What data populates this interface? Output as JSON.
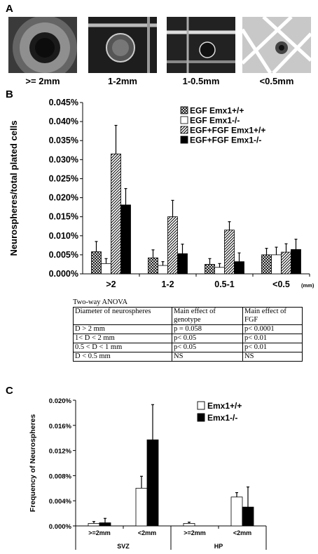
{
  "panels": {
    "A": {
      "letter": "A",
      "photos": [
        {
          "caption": ">= 2mm"
        },
        {
          "caption": "1-2mm"
        },
        {
          "caption": "1-0.5mm"
        },
        {
          "caption": "<0.5mm"
        }
      ]
    },
    "B": {
      "letter": "B"
    },
    "C": {
      "letter": "C"
    }
  },
  "chart_data": [
    {
      "type": "bar",
      "ylabel": "Neurospheres/total plated cells",
      "ylim": [
        0,
        0.045
      ],
      "yticks": [
        "0.000%",
        "0.005%",
        "0.010%",
        "0.015%",
        "0.020%",
        "0.025%",
        "0.030%",
        "0.035%",
        "0.040%",
        "0.045%"
      ],
      "categories": [
        ">2",
        "1-2",
        "0.5-1",
        "<0.5"
      ],
      "unit_label": "(mm)",
      "legend_position": "top-right",
      "series": [
        {
          "name": "EGF Emx1+/+",
          "fill": "crosshatch",
          "values": [
            0.0058,
            0.0042,
            0.0025,
            0.005
          ],
          "errors": [
            0.0027,
            0.0021,
            0.0015,
            0.0017
          ]
        },
        {
          "name": "EGF Emx1-/-",
          "fill": "white",
          "values": [
            0.0027,
            0.0022,
            0.0017,
            0.005
          ],
          "errors": [
            0.0013,
            0.001,
            0.001,
            0.002
          ]
        },
        {
          "name": "EGF+FGF Emx1+/+",
          "fill": "diagonal",
          "values": [
            0.0315,
            0.015,
            0.0115,
            0.0057
          ],
          "errors": [
            0.0075,
            0.0043,
            0.0022,
            0.0022
          ]
        },
        {
          "name": "EGF+FGF Emx1-/-",
          "fill": "black",
          "values": [
            0.0181,
            0.0053,
            0.0032,
            0.0064
          ],
          "errors": [
            0.0043,
            0.0025,
            0.0023,
            0.0027
          ]
        }
      ]
    },
    {
      "type": "bar",
      "ylabel": "Frequency of Neurospheres",
      "ylim": [
        0,
        0.02
      ],
      "yticks": [
        "0.000%",
        "0.004%",
        "0.008%",
        "0.012%",
        "0.016%",
        "0.020%"
      ],
      "categories": [
        ">=2mm",
        "<2mm",
        ">=2mm",
        "<2mm"
      ],
      "groups": [
        {
          "label": "SVZ",
          "categories": [
            0,
            1
          ]
        },
        {
          "label": "HP",
          "categories": [
            2,
            3
          ]
        }
      ],
      "legend_position": "top-right",
      "series": [
        {
          "name": "Emx1+/+",
          "fill": "white",
          "values": [
            0.0004,
            0.006,
            0.0004,
            0.0046
          ],
          "errors": [
            0.0003,
            0.0019,
            0.0002,
            0.0007
          ]
        },
        {
          "name": "Emx1-/-",
          "fill": "black",
          "values": [
            0.0005,
            0.0137,
            0.0,
            0.003
          ],
          "errors": [
            0.0007,
            0.0056,
            0.0,
            0.0032
          ]
        }
      ]
    }
  ],
  "anova": {
    "title": "Two-way ANOVA",
    "header": [
      "Diameter of neurospheres",
      "Main effect of genotype",
      "Main effect of FGF"
    ],
    "rows": [
      [
        "D > 2 mm",
        "p = 0.058",
        "p< 0.0001"
      ],
      [
        "1< D < 2 mm",
        "p< 0.05",
        "p< 0.01"
      ],
      [
        "0.5 < D < 1 mm",
        "p< 0.05",
        "p< 0.01"
      ],
      [
        "D < 0.5 mm",
        "NS",
        "NS"
      ]
    ]
  }
}
